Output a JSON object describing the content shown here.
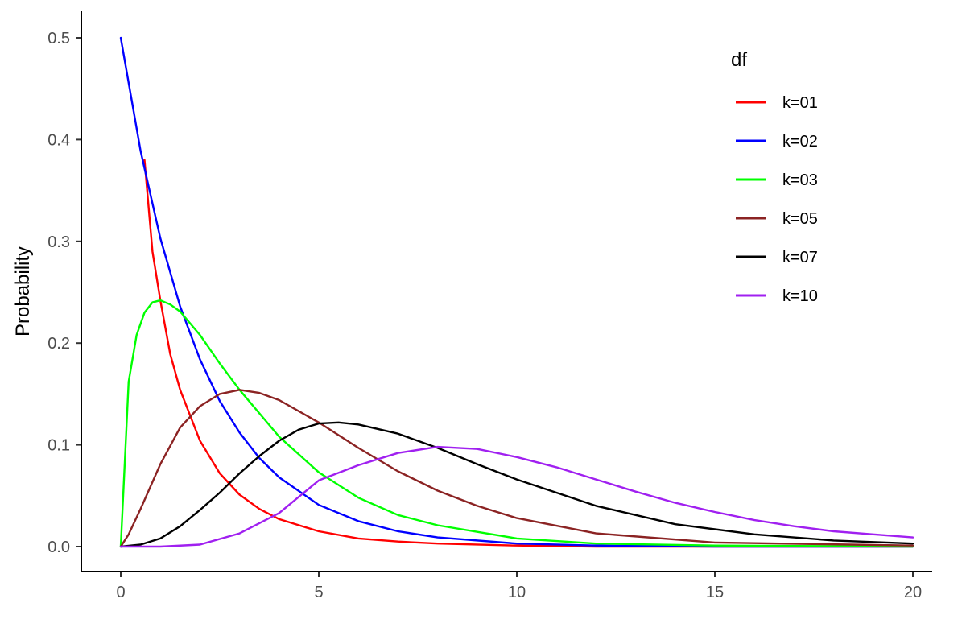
{
  "chart_data": {
    "type": "line",
    "title": "",
    "xlabel": "",
    "ylabel": "Probability",
    "xlim": [
      0,
      20
    ],
    "ylim": [
      0,
      0.5
    ],
    "x_ticks": [
      0,
      5,
      10,
      15,
      20
    ],
    "y_ticks": [
      0.0,
      0.1,
      0.2,
      0.3,
      0.4,
      0.5
    ],
    "x_tick_labels": [
      "0",
      "5",
      "10",
      "15",
      "20"
    ],
    "y_tick_labels": [
      "0.0",
      "0.1",
      "0.2",
      "0.3",
      "0.4",
      "0.5"
    ],
    "grid": false,
    "legend": {
      "title": "df",
      "placement": "top-right"
    },
    "series": [
      {
        "name": "k=01",
        "color": "#ff0000",
        "x": [
          0.6,
          0.8,
          1,
          1.25,
          1.5,
          2,
          2.5,
          3,
          3.5,
          4,
          5,
          6,
          7,
          8,
          10,
          12,
          15,
          20
        ],
        "y": [
          0.38,
          0.29,
          0.242,
          0.189,
          0.154,
          0.104,
          0.072,
          0.051,
          0.037,
          0.027,
          0.015,
          0.008,
          0.005,
          0.003,
          0.001,
          0.0,
          0.0,
          0.0
        ]
      },
      {
        "name": "k=02",
        "color": "#0000ff",
        "x": [
          0,
          0.5,
          1,
          1.5,
          2,
          2.5,
          3,
          3.5,
          4,
          5,
          6,
          7,
          8,
          10,
          12,
          15,
          20
        ],
        "y": [
          0.5,
          0.389,
          0.303,
          0.236,
          0.184,
          0.143,
          0.112,
          0.087,
          0.068,
          0.041,
          0.025,
          0.015,
          0.009,
          0.003,
          0.001,
          0.0,
          0.0
        ]
      },
      {
        "name": "k=03",
        "color": "#00ff00",
        "x": [
          0,
          0.2,
          0.4,
          0.6,
          0.8,
          1,
          1.25,
          1.5,
          2,
          2.5,
          3,
          4,
          5,
          6,
          7,
          8,
          10,
          12,
          15,
          20
        ],
        "y": [
          0.0,
          0.162,
          0.208,
          0.23,
          0.24,
          0.242,
          0.238,
          0.231,
          0.208,
          0.18,
          0.154,
          0.108,
          0.073,
          0.048,
          0.031,
          0.021,
          0.008,
          0.003,
          0.001,
          0.0
        ]
      },
      {
        "name": "k=05",
        "color": "#8b2323",
        "x": [
          0,
          0.2,
          0.5,
          1,
          1.5,
          2,
          2.5,
          3,
          3.5,
          4,
          5,
          6,
          7,
          8,
          9,
          10,
          12,
          15,
          20
        ],
        "y": [
          0.0,
          0.012,
          0.037,
          0.081,
          0.117,
          0.138,
          0.15,
          0.154,
          0.151,
          0.144,
          0.122,
          0.097,
          0.074,
          0.055,
          0.04,
          0.028,
          0.013,
          0.004,
          0.001
        ]
      },
      {
        "name": "k=07",
        "color": "#000000",
        "x": [
          0,
          0.5,
          1,
          1.5,
          2,
          2.5,
          3,
          3.5,
          4,
          4.5,
          5,
          5.5,
          6,
          7,
          8,
          9,
          10,
          12,
          14,
          16,
          18,
          20
        ],
        "y": [
          0.0,
          0.002,
          0.008,
          0.02,
          0.036,
          0.053,
          0.072,
          0.089,
          0.104,
          0.115,
          0.121,
          0.122,
          0.12,
          0.111,
          0.097,
          0.081,
          0.066,
          0.04,
          0.022,
          0.012,
          0.006,
          0.003
        ]
      },
      {
        "name": "k=10",
        "color": "#a020f0",
        "x": [
          0,
          1,
          2,
          3,
          4,
          5,
          6,
          7,
          8,
          9,
          10,
          11,
          12,
          13,
          14,
          15,
          16,
          17,
          18,
          19,
          20
        ],
        "y": [
          0.0,
          0.0,
          0.002,
          0.013,
          0.033,
          0.065,
          0.08,
          0.092,
          0.098,
          0.096,
          0.088,
          0.078,
          0.066,
          0.054,
          0.043,
          0.034,
          0.026,
          0.02,
          0.015,
          0.012,
          0.009
        ]
      }
    ]
  }
}
